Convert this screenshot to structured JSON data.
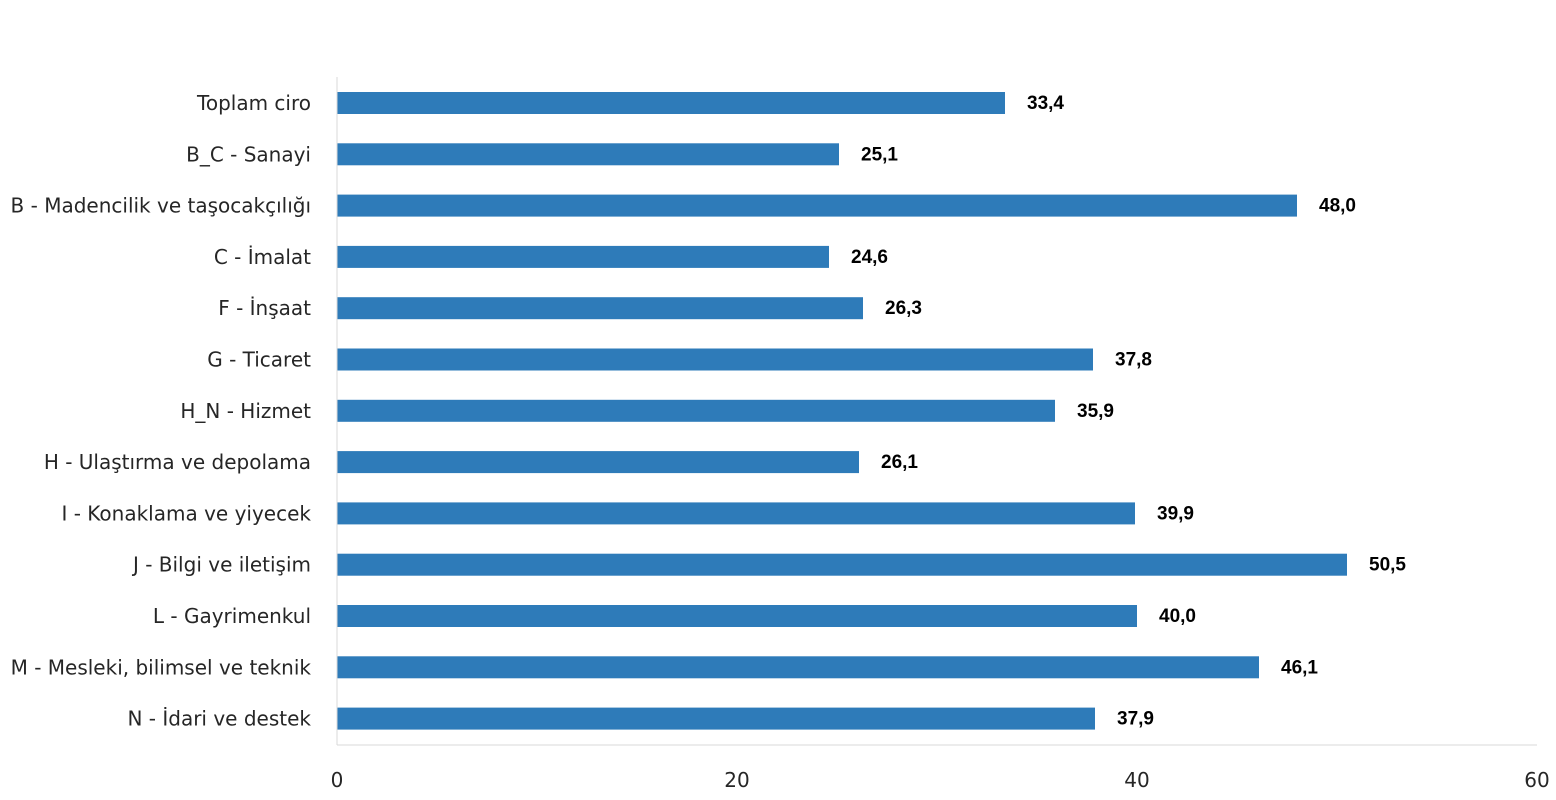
{
  "chart_data": {
    "type": "bar",
    "orientation": "horizontal",
    "categories": [
      "Toplam ciro",
      "B_C - Sanayi",
      "B - Madencilik ve taşocakçılığı",
      "C - İmalat",
      "F - İnşaat",
      "G - Ticaret",
      "H_N - Hizmet",
      "H - Ulaştırma ve depolama",
      "I - Konaklama ve yiyecek",
      "J - Bilgi ve iletişim",
      "L - Gayrimenkul",
      "M - Mesleki, bilimsel ve teknik",
      "N - İdari ve destek"
    ],
    "values": [
      33.4,
      25.1,
      48.0,
      24.6,
      26.3,
      37.8,
      35.9,
      26.1,
      39.9,
      50.5,
      40.0,
      46.1,
      37.9
    ],
    "value_labels": [
      "33,4",
      "25,1",
      "48,0",
      "24,6",
      "26,3",
      "37,8",
      "35,9",
      "26,1",
      "39,9",
      "50,5",
      "40,0",
      "46,1",
      "37,9"
    ],
    "xlim": [
      0,
      60
    ],
    "xticks": [
      0,
      20,
      40,
      60
    ],
    "xtick_labels": [
      "0",
      "20",
      "40",
      "60"
    ],
    "title": "",
    "xlabel": "",
    "ylabel": "",
    "grid": false,
    "legend": "none",
    "bar_color": "#2E7BB9",
    "axis_color": "#D9D9D9"
  }
}
